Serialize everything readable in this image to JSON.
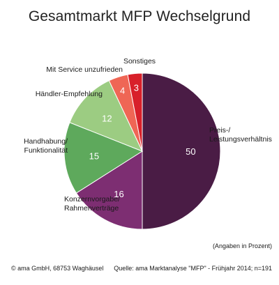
{
  "chart_data": {
    "type": "pie",
    "title": "Gesamtmarkt MFP Wechselgrund",
    "slices": [
      {
        "label": "Preis-/\nLeistungsverhältnis",
        "value": 50,
        "color": "#4a1c45"
      },
      {
        "label": "Konzernvorgabe/\nRahmenverträge",
        "value": 16,
        "color": "#7d2e72"
      },
      {
        "label": "Handhabung/\nFunktionalität",
        "value": 15,
        "color": "#5ea95c"
      },
      {
        "label": "Händler-Empfehlung",
        "value": 12,
        "color": "#9ccc82"
      },
      {
        "label": "Mit Service unzufrieden",
        "value": 4,
        "color": "#ef6655"
      },
      {
        "label": "Sonstiges",
        "value": 3,
        "color": "#d8202a"
      }
    ],
    "unit_note": "(Angaben in Prozent)"
  },
  "footer": {
    "copyright": "© ama GmbH, 68753 Waghäusel",
    "source": "Quelle: ama Marktanalyse \"MFP\" - Frühjahr 2014;  n=191"
  }
}
